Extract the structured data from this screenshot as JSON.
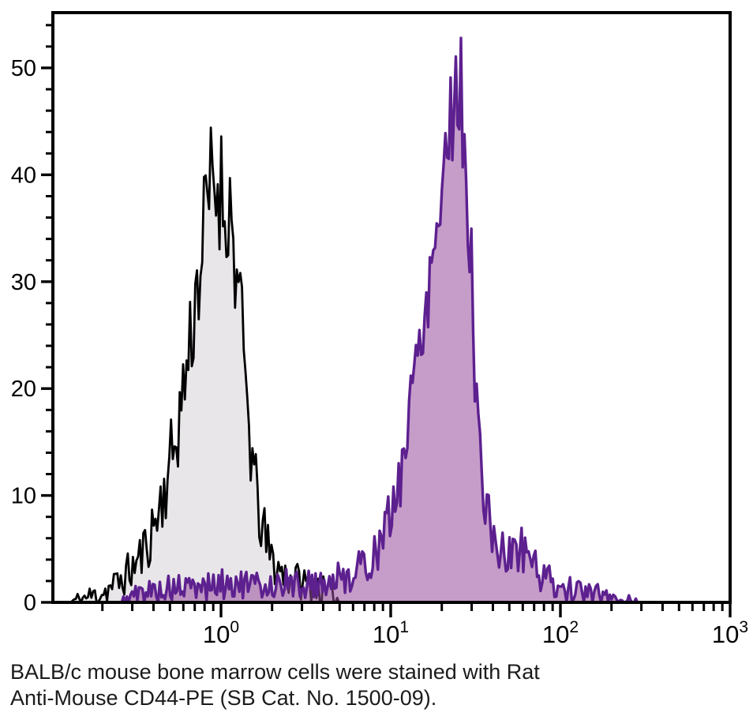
{
  "caption": {
    "line1": "BALB/c mouse bone marrow cells were stained with Rat",
    "line2": "Anti-Mouse CD44-PE (SB Cat. No. 1500-09)."
  },
  "colors": {
    "axis": "#000000",
    "background": "#ffffff",
    "caption_text": "#1b1b1b",
    "black_series_stroke": "#000000",
    "black_series_fill": "#e8e6e8",
    "purple_series_stroke": "#5d208f",
    "purple_series_fill": "#974d9c"
  },
  "chart_data": {
    "type": "area",
    "subtype": "flow-cytometry-histogram-overlay",
    "title": "",
    "xlabel": "",
    "ylabel": "",
    "grid": false,
    "legend": "none",
    "x_scale": "log10",
    "x_range": [
      0.102,
      1000
    ],
    "y_range": [
      0,
      55.2
    ],
    "y_axis": {
      "major_ticks": [
        {
          "value": 0,
          "label": "0"
        },
        {
          "value": 10,
          "label": "10"
        },
        {
          "value": 20,
          "label": "20"
        },
        {
          "value": 30,
          "label": "30"
        },
        {
          "value": 40,
          "label": "40"
        },
        {
          "value": 50,
          "label": "50"
        }
      ],
      "minor_tick_step": 2,
      "minor_tick_max": 54
    },
    "x_axis": {
      "decade_labels": [
        {
          "value": 1,
          "mantissa": "10",
          "exponent": "0"
        },
        {
          "value": 10,
          "mantissa": "10",
          "exponent": "1"
        },
        {
          "value": 100,
          "mantissa": "10",
          "exponent": "2"
        },
        {
          "value": 1000,
          "mantissa": "10",
          "exponent": "3"
        }
      ],
      "minor_decades": [
        -1,
        0,
        1,
        2
      ],
      "minor_multiples": [
        2,
        3,
        4,
        5,
        6,
        7,
        8,
        9
      ]
    },
    "series": [
      {
        "id": "black-control-histogram",
        "stroke": "#000000",
        "stroke_width": 2.8,
        "fill": "#e8e6e8",
        "fill_opacity": 1,
        "peak": {
          "x": 0.9,
          "height": 45
        },
        "noise": {
          "seed": 11,
          "base": 0.3,
          "sqrt_coeff": 1.0,
          "clamp_max": 45.8
        },
        "envelope": [
          [
            0.13,
            0.05
          ],
          [
            0.155,
            0.4
          ],
          [
            0.18,
            0.7
          ],
          [
            0.21,
            1.1
          ],
          [
            0.24,
            1.7
          ],
          [
            0.27,
            2.4
          ],
          [
            0.31,
            3.4
          ],
          [
            0.35,
            4.8
          ],
          [
            0.39,
            6.6
          ],
          [
            0.43,
            8.6
          ],
          [
            0.47,
            11
          ],
          [
            0.52,
            14
          ],
          [
            0.57,
            17.5
          ],
          [
            0.62,
            21.5
          ],
          [
            0.67,
            25.5
          ],
          [
            0.72,
            29.5
          ],
          [
            0.77,
            33
          ],
          [
            0.82,
            36
          ],
          [
            0.86,
            38.5
          ],
          [
            0.9,
            40
          ],
          [
            0.94,
            38.5
          ],
          [
            0.98,
            39.5
          ],
          [
            1.02,
            38
          ],
          [
            1.06,
            36.5
          ],
          [
            1.1,
            38
          ],
          [
            1.15,
            35.5
          ],
          [
            1.2,
            33
          ],
          [
            1.27,
            28.5
          ],
          [
            1.34,
            24
          ],
          [
            1.42,
            19
          ],
          [
            1.5,
            14.5
          ],
          [
            1.6,
            10.5
          ],
          [
            1.72,
            7.5
          ],
          [
            1.85,
            5.5
          ],
          [
            2.0,
            4
          ],
          [
            2.2,
            3
          ],
          [
            2.5,
            2.4
          ],
          [
            2.9,
            2
          ],
          [
            3.4,
            1.6
          ],
          [
            3.9,
            1.2
          ],
          [
            4.4,
            0.7
          ],
          [
            4.8,
            0.3
          ],
          [
            5.1,
            0.05
          ]
        ]
      },
      {
        "id": "cd44-pe-purple-histogram",
        "stroke": "#5d208f",
        "stroke_width": 3.4,
        "fill": "#974d9c",
        "fill_opacity": 0.55,
        "peak": {
          "x": 25,
          "height": 52.5
        },
        "noise": {
          "seed": 5,
          "base": 0.3,
          "sqrt_coeff": 0.85,
          "clamp_max": 52.8
        },
        "envelope": [
          [
            0.26,
            0.1
          ],
          [
            0.3,
            0.6
          ],
          [
            0.36,
            1.0
          ],
          [
            0.44,
            1.2
          ],
          [
            0.54,
            1.3
          ],
          [
            0.66,
            1.3
          ],
          [
            0.8,
            1.5
          ],
          [
            0.95,
            1.6
          ],
          [
            1.15,
            1.8
          ],
          [
            1.4,
            1.6
          ],
          [
            1.7,
            1.5
          ],
          [
            2.0,
            1.7
          ],
          [
            2.4,
            1.8
          ],
          [
            2.9,
            1.6
          ],
          [
            3.4,
            1.8
          ],
          [
            4.0,
            1.8
          ],
          [
            4.7,
            2.1
          ],
          [
            5.4,
            2.4
          ],
          [
            6.2,
            2.9
          ],
          [
            7.1,
            3.6
          ],
          [
            8.1,
            4.6
          ],
          [
            9.1,
            6.2
          ],
          [
            10.2,
            8.5
          ],
          [
            11.2,
            11.5
          ],
          [
            12.2,
            15
          ],
          [
            13.2,
            19
          ],
          [
            14.2,
            23
          ],
          [
            15.3,
            26.5
          ],
          [
            16.4,
            29.5
          ],
          [
            17.5,
            32.5
          ],
          [
            18.7,
            35.5
          ],
          [
            19.9,
            39
          ],
          [
            21,
            42
          ],
          [
            22,
            44.5
          ],
          [
            23,
            46.5
          ],
          [
            24,
            48.5
          ],
          [
            25,
            49.5
          ],
          [
            26,
            47.5
          ],
          [
            27,
            44.5
          ],
          [
            28,
            40
          ],
          [
            29,
            35
          ],
          [
            30,
            29.5
          ],
          [
            31.5,
            22
          ],
          [
            33,
            15.5
          ],
          [
            35,
            10.5
          ],
          [
            37,
            8
          ],
          [
            39,
            7
          ],
          [
            41.5,
            5.8
          ],
          [
            44,
            4.8
          ],
          [
            47,
            4.2
          ],
          [
            50,
            4.2
          ],
          [
            53,
            4.8
          ],
          [
            57,
            5.2
          ],
          [
            61,
            5
          ],
          [
            66,
            4.4
          ],
          [
            71,
            3.5
          ],
          [
            77,
            2.7
          ],
          [
            84,
            2.1
          ],
          [
            92,
            1.7
          ],
          [
            101,
            1.4
          ],
          [
            112,
            1.2
          ],
          [
            126,
            1.0
          ],
          [
            142,
            0.9
          ],
          [
            160,
            0.8
          ],
          [
            180,
            0.6
          ],
          [
            205,
            0.5
          ],
          [
            235,
            0.35
          ],
          [
            265,
            0.2
          ],
          [
            290,
            0.05
          ]
        ]
      }
    ]
  }
}
